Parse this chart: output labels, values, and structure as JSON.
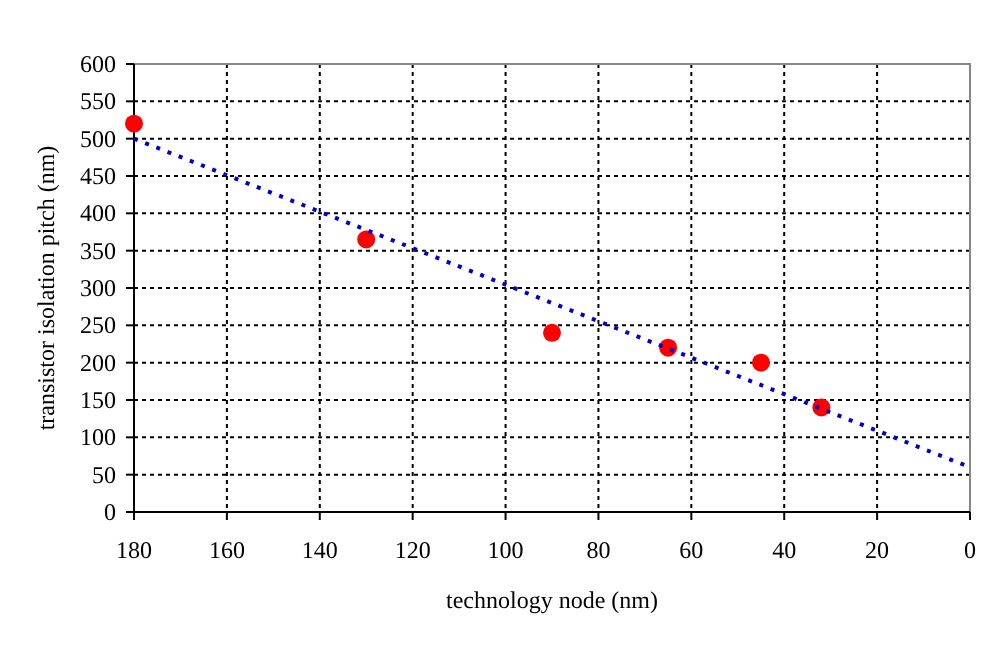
{
  "chart_data": {
    "type": "scatter",
    "xlabel": "technology node (nm)",
    "ylabel": "transistor isolation pitch (nm)",
    "xlim": [
      180,
      0
    ],
    "xticks": [
      180,
      160,
      140,
      120,
      100,
      80,
      60,
      40,
      20,
      0
    ],
    "ylim": [
      0,
      600
    ],
    "yticks": [
      0,
      50,
      100,
      150,
      200,
      250,
      300,
      350,
      400,
      450,
      500,
      550,
      600
    ],
    "grid": true,
    "marker": "circle",
    "series": [
      {
        "color": "#ff0000",
        "x": [
          180,
          130,
          90,
          65,
          45,
          32
        ],
        "values": [
          520,
          365,
          240,
          220,
          200,
          140
        ]
      },
      {
        "type": "line",
        "color": "#0000cc",
        "line_style": "dotted",
        "marker": "none",
        "x": [
          180,
          0
        ],
        "values": [
          500,
          60
        ]
      }
    ]
  }
}
